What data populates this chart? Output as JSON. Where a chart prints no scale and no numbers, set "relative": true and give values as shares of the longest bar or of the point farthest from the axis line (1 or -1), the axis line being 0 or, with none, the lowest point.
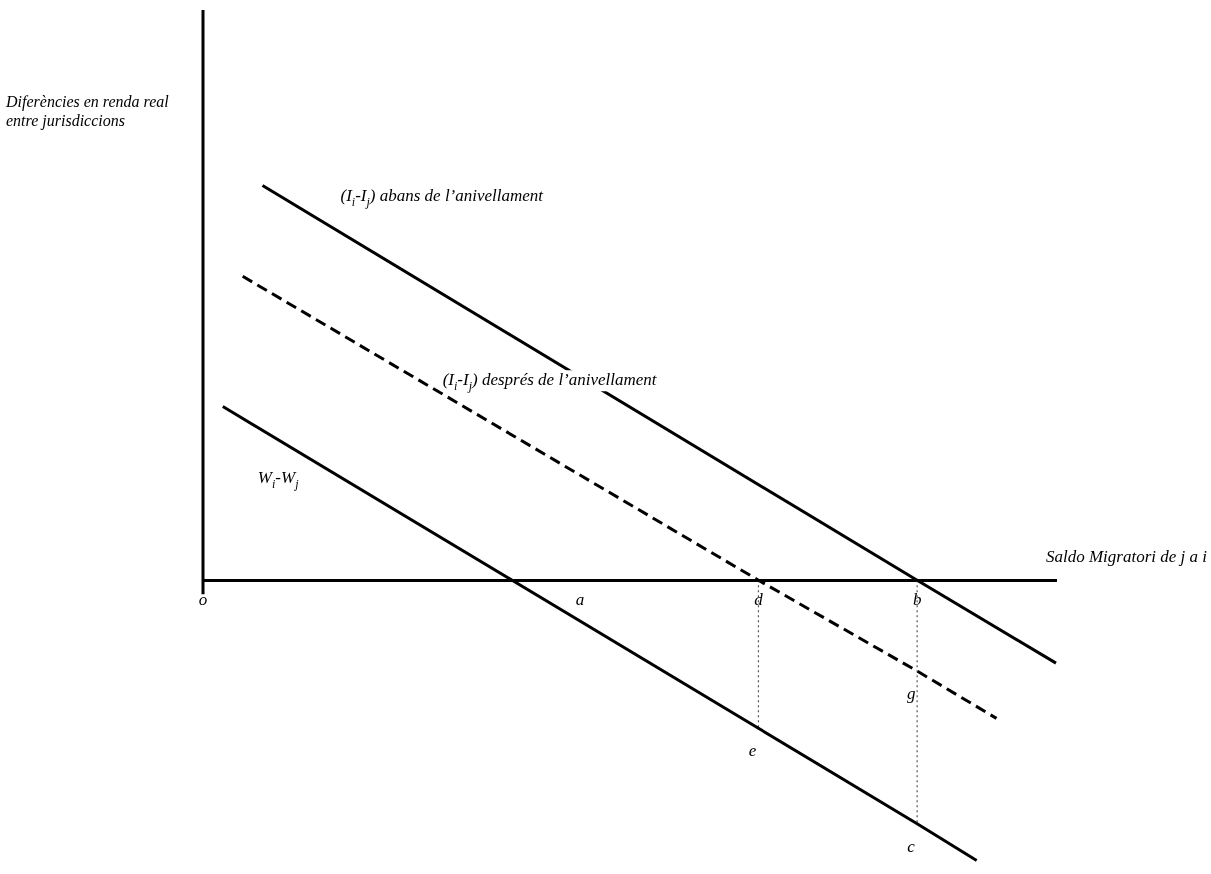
{
  "chart_data": {
    "type": "line",
    "relative": true,
    "xlabel": "Saldo Migratori de j a i",
    "ylabel": "Diferències en renda real entre jurisdiccions",
    "categories": [
      "o",
      null,
      null,
      null,
      null,
      null,
      null,
      null,
      null,
      null,
      null,
      null,
      null,
      null,
      null,
      null,
      null,
      null,
      null,
      "a",
      null,
      null,
      null,
      null,
      null,
      null,
      null,
      null,
      "d",
      null,
      null,
      null,
      null,
      null,
      null,
      null,
      "b",
      null,
      null,
      null,
      null,
      null,
      null,
      null
    ],
    "series": [
      {
        "name": "(I$_{i}$-I$_{j}$) abans de l’anivellament",
        "color": "#000000",
        "line_style": "solid",
        "values": [
          null,
          null,
          null,
          1,
          null,
          null,
          null,
          null,
          null,
          null,
          null,
          null,
          null,
          null,
          null,
          null,
          null,
          null,
          null,
          null,
          null,
          null,
          null,
          null,
          null,
          null,
          null,
          null,
          null,
          null,
          null,
          null,
          null,
          null,
          null,
          null,
          0,
          null,
          null,
          null,
          null,
          null,
          null,
          -0.21
        ]
      },
      {
        "name": "(I$_{i}$-I$_{j}$) després de l’anivellament",
        "color": "#000000",
        "line_style": "dashed",
        "values": [
          null,
          null,
          0.77,
          null,
          null,
          null,
          null,
          null,
          null,
          null,
          null,
          null,
          null,
          null,
          null,
          null,
          null,
          null,
          null,
          null,
          null,
          null,
          null,
          null,
          null,
          null,
          null,
          null,
          0,
          null,
          null,
          null,
          null,
          null,
          null,
          null,
          -0.23,
          null,
          null,
          null,
          -0.35,
          null,
          null,
          null
        ]
      },
      {
        "name": "W$_{i}$-W$_{j}$",
        "color": "#000000",
        "line_style": "solid",
        "values": [
          null,
          0.44,
          null,
          null,
          null,
          null,
          null,
          null,
          null,
          null,
          null,
          null,
          null,
          null,
          null,
          null,
          null,
          null,
          null,
          null,
          null,
          null,
          null,
          null,
          null,
          null,
          null,
          null,
          -0.375,
          null,
          null,
          null,
          null,
          null,
          null,
          null,
          -0.617,
          null,
          null,
          -0.71,
          null,
          null,
          null,
          null
        ]
      },
      {
        "color": "#555555",
        "line_style": "dotted",
        "x": [
          "d",
          "d"
        ],
        "values": [
          0,
          -0.375
        ]
      },
      {
        "color": "#555555",
        "line_style": "dotted",
        "x": [
          "b",
          "b"
        ],
        "values": [
          0,
          -0.617
        ]
      }
    ],
    "annotations": [
      {
        "text": "e",
        "x": "d",
        "y": -0.375
      },
      {
        "text": "c",
        "x": "b",
        "y": -0.617
      },
      {
        "text": "g",
        "x": "b",
        "y": -0.23
      }
    ]
  }
}
